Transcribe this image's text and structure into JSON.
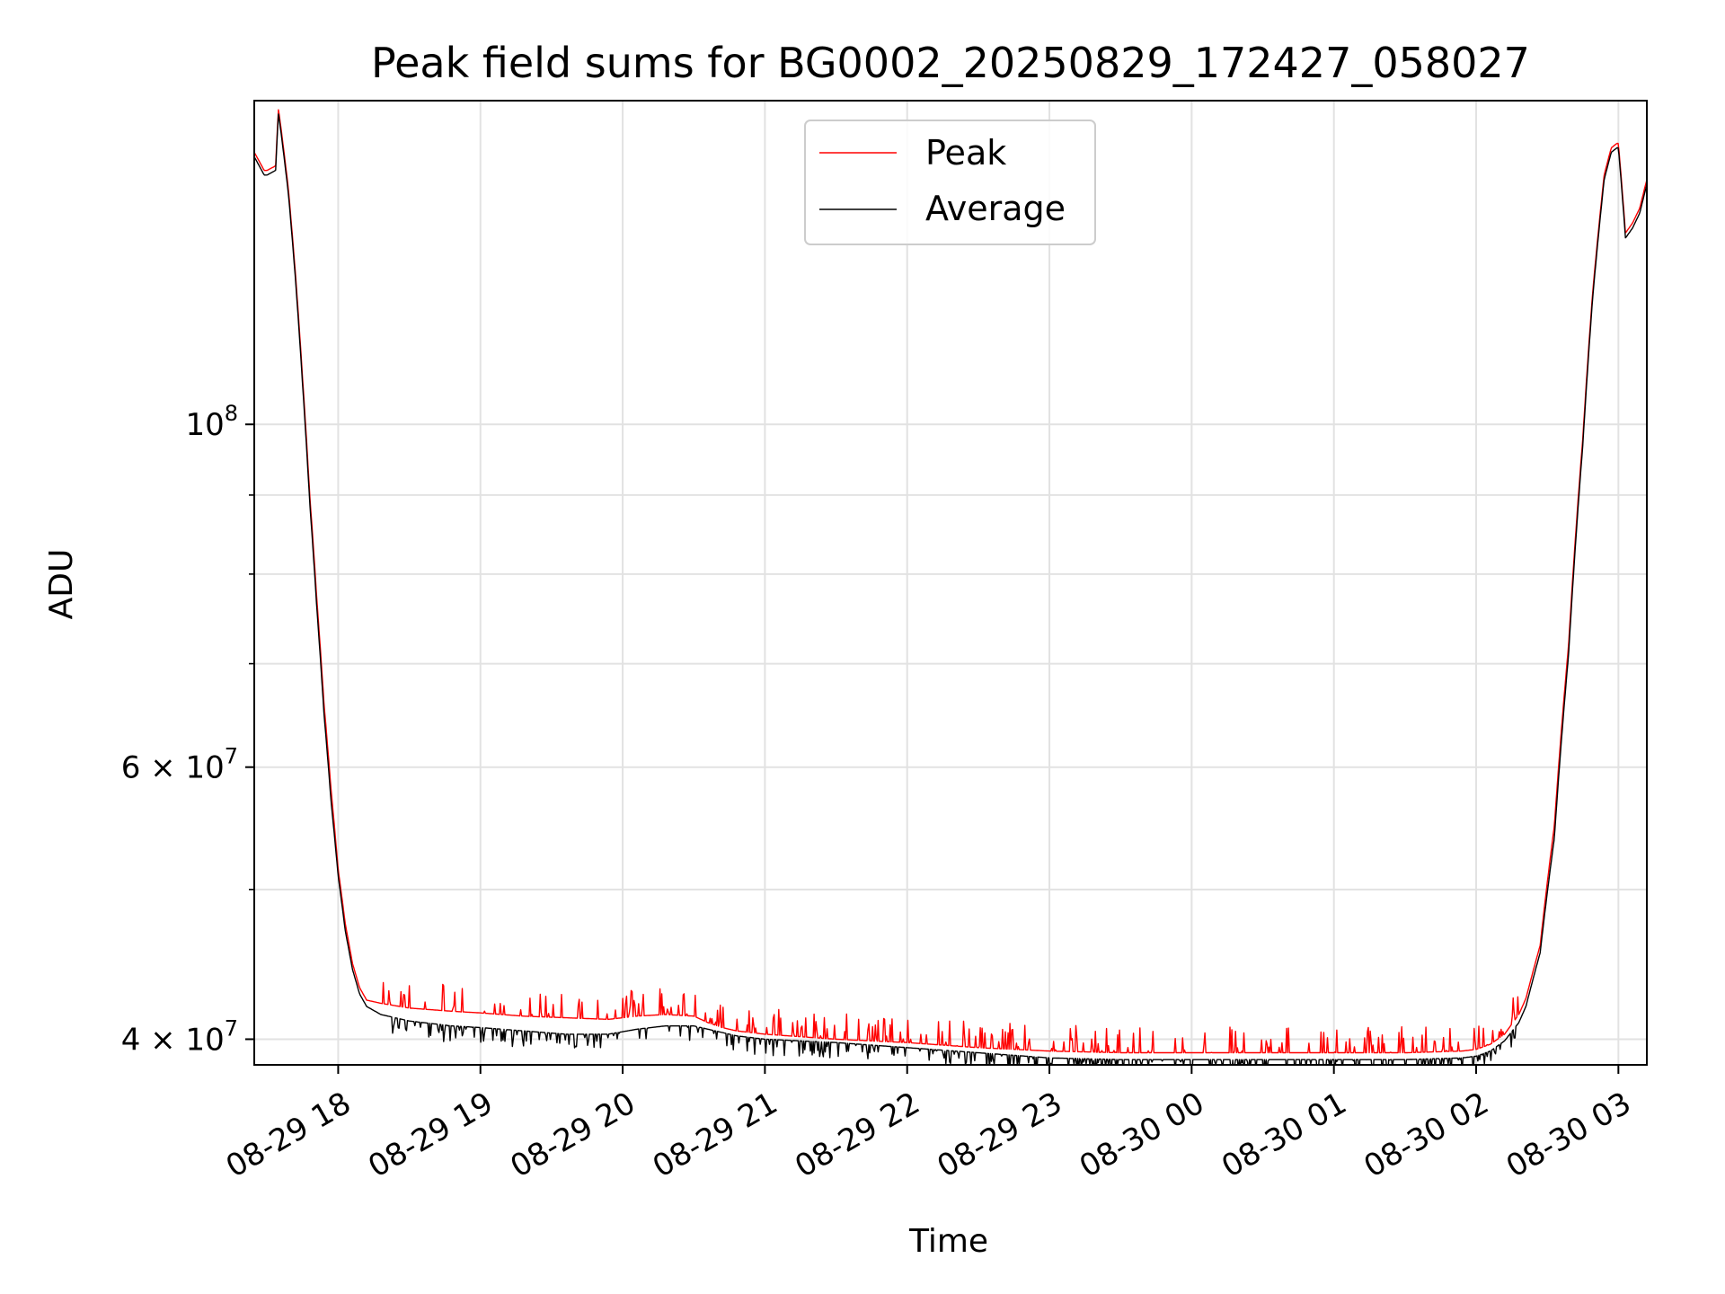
{
  "chart_data": {
    "type": "line",
    "title": "Peak field sums for BG0002_20250829_172427_058027",
    "xlabel": "Time",
    "ylabel": "ADU",
    "yscale": "log",
    "grid": true,
    "legend_position": "upper-center",
    "x_unit": "hours since 08-29 00:00",
    "xlim": [
      17.41,
      27.2
    ],
    "ylim": [
      38500000,
      162000000
    ],
    "x_ticks": [
      {
        "value": 18,
        "label": "08-29 18"
      },
      {
        "value": 19,
        "label": "08-29 19"
      },
      {
        "value": 20,
        "label": "08-29 20"
      },
      {
        "value": 21,
        "label": "08-29 21"
      },
      {
        "value": 22,
        "label": "08-29 22"
      },
      {
        "value": 23,
        "label": "08-29 23"
      },
      {
        "value": 24,
        "label": "08-30 00"
      },
      {
        "value": 25,
        "label": "08-30 01"
      },
      {
        "value": 26,
        "label": "08-30 02"
      },
      {
        "value": 27,
        "label": "08-30 03"
      }
    ],
    "y_major_ticks": [
      {
        "value": 40000000,
        "mantissa": "4",
        "exponent": "7"
      },
      {
        "value": 60000000,
        "mantissa": "6",
        "exponent": "7"
      },
      {
        "value": 100000000,
        "mantissa": "10",
        "exponent": "8"
      }
    ],
    "y_minor_ticks": [
      50000000,
      70000000,
      80000000,
      90000000
    ],
    "series": [
      {
        "name": "Peak",
        "color": "#ff0000",
        "noise": 2.5,
        "x": [
          17.41,
          17.48,
          17.5,
          17.56,
          17.58,
          17.6,
          17.65,
          17.7,
          17.75,
          17.8,
          17.85,
          17.9,
          17.95,
          18.0,
          18.05,
          18.1,
          18.15,
          18.2,
          18.3,
          18.5,
          18.8,
          19.0,
          19.3,
          19.6,
          19.9,
          20.1,
          20.3,
          20.5,
          20.6,
          20.7,
          20.8,
          21.0,
          21.5,
          22.0,
          22.5,
          23.0,
          23.5,
          24.0,
          24.5,
          25.0,
          25.5,
          25.9,
          26.0,
          26.1,
          26.2,
          26.3,
          26.35,
          26.45,
          26.55,
          26.65,
          26.75,
          26.82,
          26.9,
          26.95,
          26.99,
          27.0,
          27.05,
          27.1,
          27.15,
          27.2
        ],
        "y": [
          150,
          146,
          146,
          147,
          160,
          155,
          142,
          125,
          107,
          90,
          77,
          66,
          58,
          51.5,
          47.5,
          44.8,
          43.2,
          42.4,
          42.2,
          41.9,
          41.7,
          41.6,
          41.4,
          41.3,
          41.2,
          41.4,
          41.5,
          41.4,
          41.0,
          40.7,
          40.5,
          40.3,
          40.0,
          39.8,
          39.5,
          39.3,
          39.2,
          39.2,
          39.2,
          39.2,
          39.2,
          39.3,
          39.4,
          39.7,
          40.3,
          41.5,
          42.5,
          46,
          55,
          72,
          98,
          122,
          145,
          151,
          152,
          152,
          133,
          135,
          138,
          144
        ]
      },
      {
        "name": "Average",
        "color": "#000000",
        "noise": 1.5,
        "x": [
          17.41,
          17.48,
          17.5,
          17.56,
          17.58,
          17.6,
          17.65,
          17.7,
          17.75,
          17.8,
          17.85,
          17.9,
          17.95,
          18.0,
          18.05,
          18.1,
          18.15,
          18.2,
          18.3,
          18.5,
          18.8,
          19.0,
          19.3,
          19.6,
          19.9,
          20.1,
          20.3,
          20.5,
          20.6,
          20.7,
          20.8,
          21.0,
          21.5,
          22.0,
          22.5,
          23.0,
          23.5,
          24.0,
          24.5,
          25.0,
          25.5,
          25.9,
          26.0,
          26.1,
          26.2,
          26.3,
          26.35,
          26.45,
          26.55,
          26.65,
          26.75,
          26.82,
          26.9,
          26.95,
          26.99,
          27.0,
          27.05,
          27.1,
          27.15,
          27.2
        ],
        "y": [
          149,
          145,
          145,
          146,
          159,
          154,
          141,
          124,
          106,
          89,
          76,
          65,
          57,
          51,
          47,
          44.4,
          42.8,
          42,
          41.5,
          41.1,
          40.8,
          40.7,
          40.5,
          40.3,
          40.3,
          40.6,
          40.8,
          40.8,
          40.6,
          40.4,
          40.2,
          40.0,
          39.8,
          39.5,
          39.2,
          38.9,
          38.8,
          38.8,
          38.8,
          38.8,
          38.8,
          38.9,
          39.0,
          39.3,
          39.9,
          41.0,
          42,
          45.5,
          54,
          71,
          97,
          121,
          144,
          150,
          151,
          151,
          132,
          134,
          137,
          143
        ]
      }
    ]
  }
}
